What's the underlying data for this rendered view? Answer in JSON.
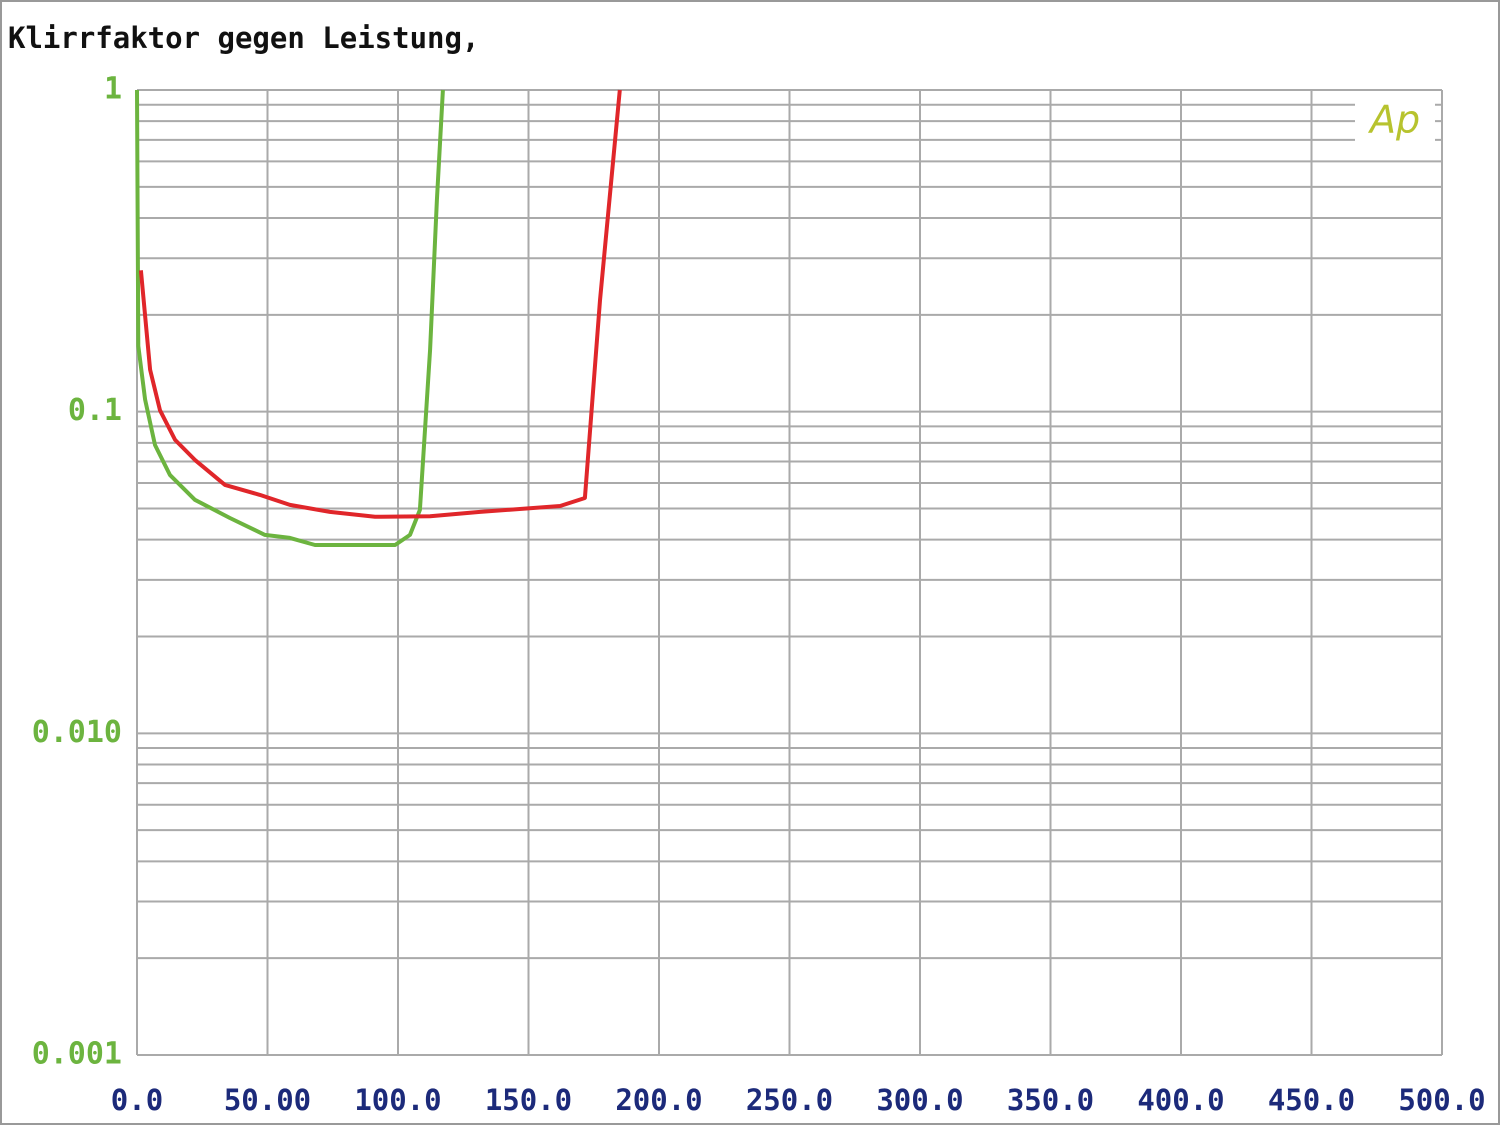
{
  "chart_data": {
    "type": "line",
    "title": "Klirrfaktor gegen Leistung,",
    "logo": "Ap",
    "log_y": true,
    "grid": true,
    "xlim": [
      0,
      500
    ],
    "ylim": [
      0.001,
      1
    ],
    "xticks": [
      {
        "value": 0,
        "label": "0.0"
      },
      {
        "value": 50,
        "label": "50.00"
      },
      {
        "value": 100,
        "label": "100.0"
      },
      {
        "value": 150,
        "label": "150.0"
      },
      {
        "value": 200,
        "label": "200.0"
      },
      {
        "value": 250,
        "label": "250.0"
      },
      {
        "value": 300,
        "label": "300.0"
      },
      {
        "value": 350,
        "label": "350.0"
      },
      {
        "value": 400,
        "label": "400.0"
      },
      {
        "value": 450,
        "label": "450.0"
      },
      {
        "value": 500,
        "label": "500.0"
      }
    ],
    "yticks": [
      0.001,
      {
        "value": 0.01,
        "label": "0.010"
      },
      0.1,
      1
    ],
    "series": [
      {
        "color": "#6cb43f",
        "x": [
          0,
          0.5,
          3.1,
          6.9,
          12.6,
          22.2,
          35.6,
          49,
          58.6,
          68.2,
          81.6,
          98.9,
          104.6,
          108.4,
          112.3,
          114.9,
          117.2
        ],
        "values": [
          1,
          0.16,
          0.109,
          0.0788,
          0.0636,
          0.0532,
          0.0467,
          0.0414,
          0.0405,
          0.0385,
          0.0385,
          0.0385,
          0.0414,
          0.0495,
          0.156,
          0.455,
          1
        ]
      },
      {
        "color": "#e0262a",
        "x": [
          1.5,
          5,
          8.8,
          14.6,
          22.2,
          33.7,
          47.1,
          58.6,
          73.9,
          91.2,
          112.3,
          131.4,
          162.1,
          171.6,
          177.4,
          185
        ],
        "values": [
          0.275,
          0.135,
          0.101,
          0.0817,
          0.0708,
          0.0592,
          0.0551,
          0.0513,
          0.0488,
          0.0471,
          0.0473,
          0.0488,
          0.0509,
          0.0539,
          0.222,
          1
        ]
      }
    ]
  }
}
